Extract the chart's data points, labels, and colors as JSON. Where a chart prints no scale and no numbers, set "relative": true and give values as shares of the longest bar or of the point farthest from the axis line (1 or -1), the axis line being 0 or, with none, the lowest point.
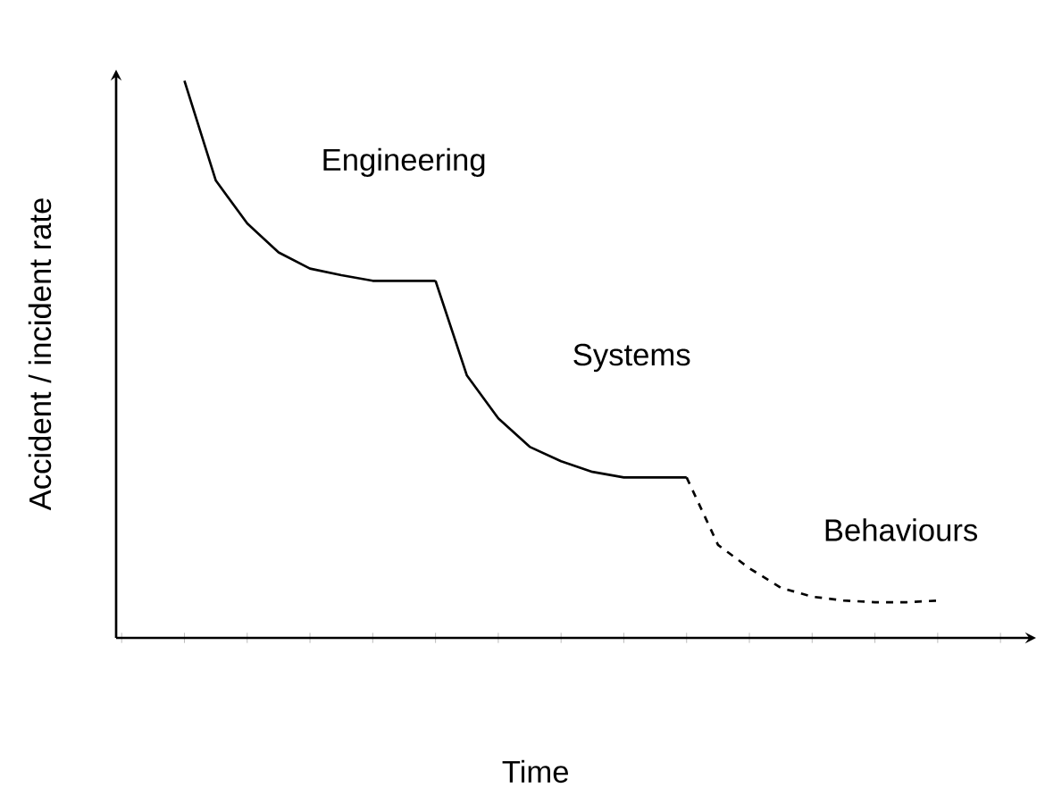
{
  "chart_data": {
    "type": "line",
    "relative": true,
    "xlabel": "Time",
    "ylabel": "Accident / incident rate",
    "categories": [
      null,
      null,
      null,
      null,
      null,
      null,
      null,
      null,
      null,
      null,
      null,
      null,
      null,
      null,
      null,
      null,
      null,
      null,
      null,
      null,
      null,
      null,
      null,
      null,
      null
    ],
    "series": [
      {
        "name": "Engineering",
        "color": "#000000",
        "line_style": "solid",
        "values": [
          1.0,
          0.821,
          0.744,
          0.692,
          0.663,
          0.651,
          0.641,
          0.641,
          0.641,
          null,
          null,
          null,
          null,
          null,
          null,
          null,
          null,
          null,
          null,
          null,
          null,
          null,
          null,
          null,
          null
        ]
      },
      {
        "name": "Systems",
        "color": "#000000",
        "line_style": "solid",
        "values": [
          null,
          null,
          null,
          null,
          null,
          null,
          null,
          null,
          0.641,
          0.471,
          0.394,
          0.343,
          0.317,
          0.298,
          0.288,
          0.288,
          0.288,
          null,
          null,
          null,
          null,
          null,
          null,
          null,
          null
        ]
      },
      {
        "name": "Behaviours",
        "color": "#000000",
        "line_style": "dashed",
        "values": [
          null,
          null,
          null,
          null,
          null,
          null,
          null,
          null,
          null,
          null,
          null,
          null,
          null,
          null,
          null,
          null,
          0.288,
          0.167,
          0.125,
          0.09,
          0.074,
          0.067,
          0.064,
          0.064,
          0.067
        ]
      }
    ]
  }
}
